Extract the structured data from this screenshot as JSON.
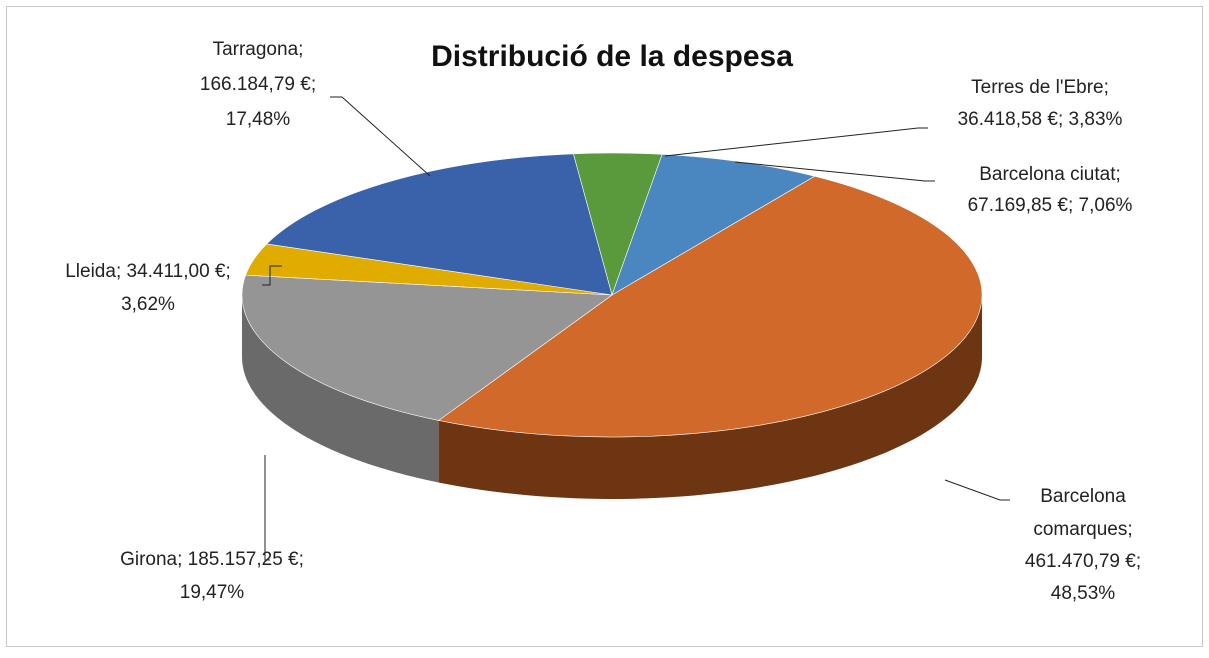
{
  "chart_data": {
    "type": "pie3d",
    "title": "Distribució de la despesa",
    "categories": [
      "Terres de l'Ebre",
      "Barcelona ciutat",
      "Barcelona comarques",
      "Girona",
      "Lleida",
      "Tarragona"
    ],
    "values": [
      36418.58,
      67169.85,
      461470.79,
      185157.25,
      34411.0,
      166184.79
    ],
    "value_labels": [
      "36.418,58 €",
      "67.169,85 €",
      "461.470,79 €",
      "185.157,25 €",
      "34.411,00 €",
      "166.184,79 €"
    ],
    "percents": [
      3.83,
      7.06,
      48.53,
      19.47,
      3.62,
      17.48
    ],
    "percent_labels": [
      "3,83%",
      "7,06%",
      "48,53%",
      "19,47%",
      "3,62%",
      "17,48%"
    ],
    "label_separator": "; ",
    "colors": [
      "#5b9a3c",
      "#4a86c0",
      "#d0692a",
      "#959595",
      "#e0ac00",
      "#3a62ab"
    ],
    "side_colors": [
      "#3d6a28",
      "#315d87",
      "#6e3513",
      "#6a6a6a",
      "#9c7700",
      "#27447a"
    ]
  }
}
